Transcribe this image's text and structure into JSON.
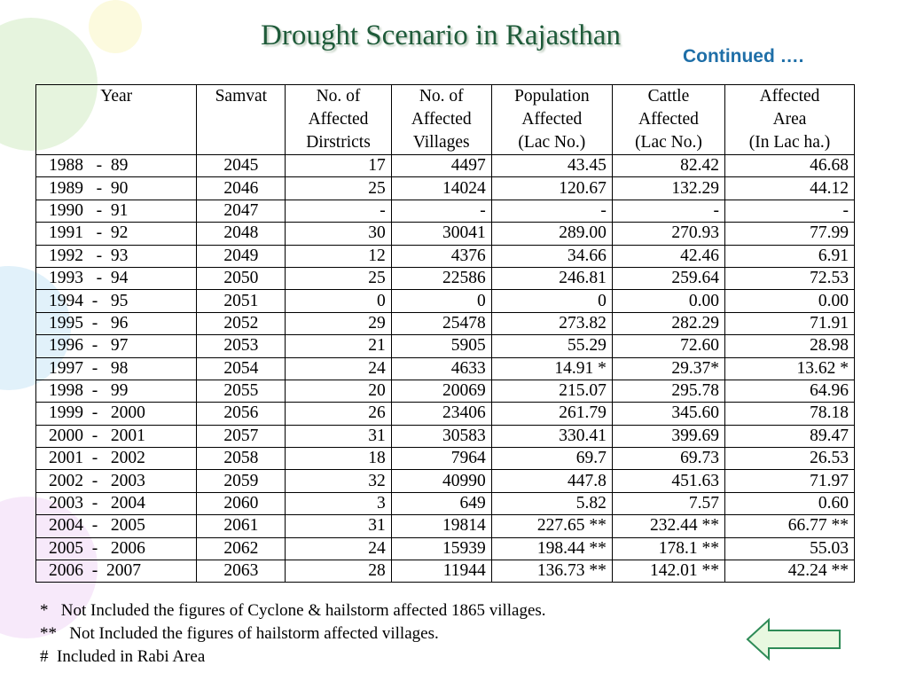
{
  "header": {
    "title": "Drought Scenario in Rajasthan",
    "subtitle": "Continued …."
  },
  "table": {
    "columns": [
      "Year",
      "Samvat",
      "No. of\nAffected\nDirstricts",
      "No. of\nAffected\nVillages",
      "Population\nAffected\n(Lac No.)",
      "Cattle\nAffected\n(Lac No.)",
      "Affected\nArea\n(In Lac ha.)"
    ],
    "rows": [
      [
        "1988   -  89",
        "2045",
        "17",
        "4497",
        "43.45",
        "82.42",
        "46.68"
      ],
      [
        "1989   -  90",
        "2046",
        "25",
        "14024",
        "120.67",
        "132.29",
        "44.12"
      ],
      [
        "1990   -  91",
        "2047",
        "-",
        "-",
        "-",
        "-",
        "-"
      ],
      [
        "1991   -  92",
        "2048",
        "30",
        "30041",
        "289.00",
        "270.93",
        "77.99"
      ],
      [
        "1992   -  93",
        "2049",
        "12",
        "4376",
        "34.66",
        "42.46",
        "6.91"
      ],
      [
        "1993   -  94",
        "2050",
        "25",
        "22586",
        "246.81",
        "259.64",
        "72.53"
      ],
      [
        "1994  -   95",
        "2051",
        "0",
        "0",
        "0",
        "0.00",
        "0.00"
      ],
      [
        "1995  -   96",
        "2052",
        "29",
        "25478",
        "273.82",
        "282.29",
        "71.91"
      ],
      [
        "1996  -   97",
        "2053",
        "21",
        "5905",
        "55.29",
        "72.60",
        "28.98"
      ],
      [
        "1997  -   98",
        "2054",
        "24",
        "4633",
        "14.91 *",
        "29.37*",
        "13.62 *"
      ],
      [
        "1998  -   99",
        "2055",
        "20",
        "20069",
        "215.07",
        "295.78",
        "64.96"
      ],
      [
        "1999  -   2000",
        "2056",
        "26",
        "23406",
        "261.79",
        "345.60",
        "78.18"
      ],
      [
        "2000  -   2001",
        "2057",
        "31",
        "30583",
        "330.41",
        "399.69",
        "89.47"
      ],
      [
        "2001  -   2002",
        "2058",
        "18",
        "7964",
        "69.7",
        "69.73",
        "26.53"
      ],
      [
        "2002  -   2003",
        "2059",
        "32",
        "40990",
        "447.8",
        "451.63",
        "71.97"
      ],
      [
        "2003  -   2004",
        "2060",
        "3",
        "649",
        "5.82",
        "7.57",
        "0.60"
      ],
      [
        "2004  -   2005",
        "2061",
        "31",
        "19814",
        "227.65 **",
        "232.44 **",
        "66.77 **"
      ],
      [
        "2005  -   2006",
        "2062",
        "24",
        "15939",
        "198.44 **",
        "178.1 **",
        "55.03"
      ],
      [
        "2006  -  2007",
        "2063",
        "28",
        "11944",
        "136.73 **",
        "142.01 **",
        "42.24 **"
      ]
    ]
  },
  "footnotes": [
    "*   Not Included the figures of Cyclone & hailstorm affected 1865 villages.",
    "**   Not Included the figures of hailstorm affected villages.",
    "#  Included in Rabi Area"
  ]
}
